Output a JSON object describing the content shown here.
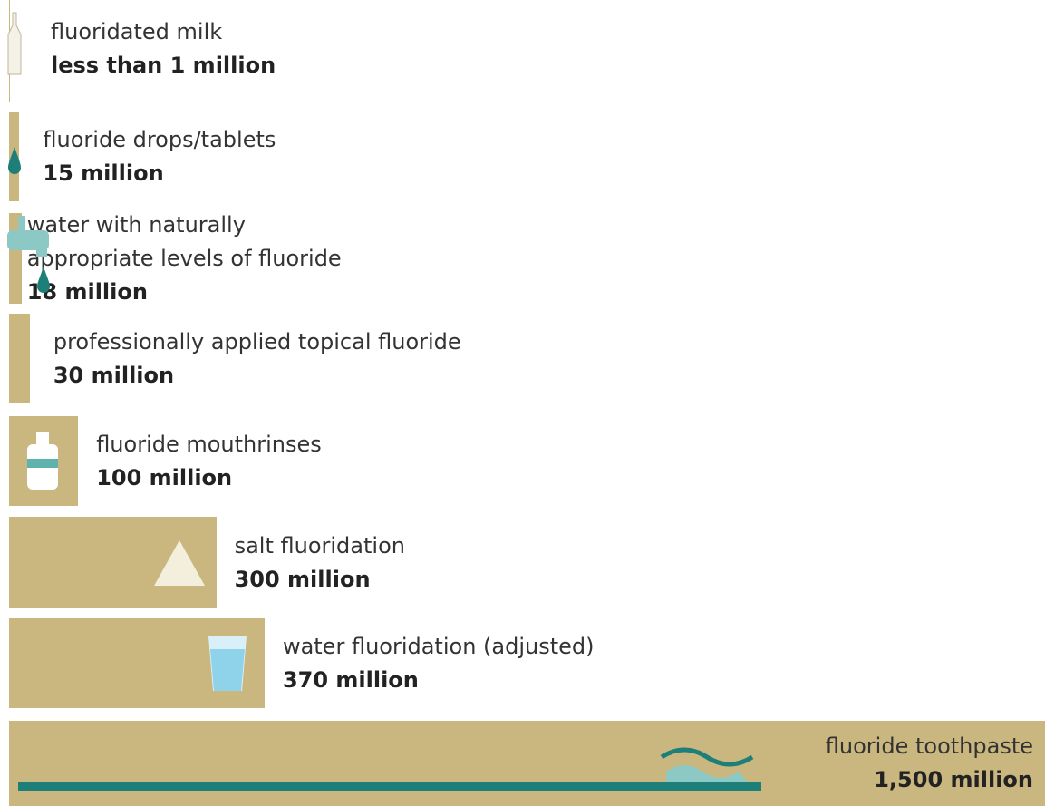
{
  "chart_data": {
    "type": "bar",
    "categories": [
      "fluoridated  milk",
      "fluoride drops/tablets",
      "water  with  naturally\nappropriate  levels  of fluoride",
      "professionally  applied  topical  fluoride",
      "fluoride  mouthrinses",
      "salt fluoridation",
      "water  fluoridation (adjusted)",
      "fluoride  toothpaste"
    ],
    "values": [
      1,
      15,
      18,
      30,
      100,
      300,
      370,
      1500
    ],
    "value_labels": [
      "less than 1 million",
      "15 million",
      "18 million",
      "30 million",
      "100 million",
      "300 million",
      "370 million",
      "1,500 million"
    ],
    "color": "#c9b77f"
  }
}
